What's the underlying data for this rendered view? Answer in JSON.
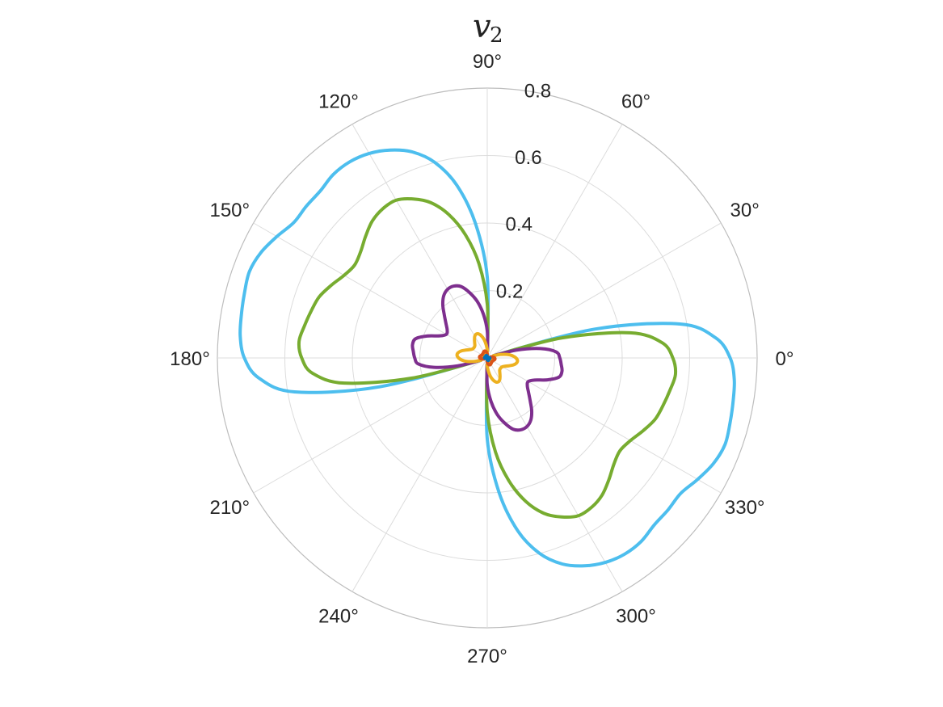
{
  "chart_data": {
    "type": "line",
    "projection": "polar",
    "title": "v",
    "title_subscript": "2",
    "rlim": [
      0,
      0.8
    ],
    "r_ticks": [
      0.2,
      0.4,
      0.6,
      0.8
    ],
    "r_tick_labels": [
      "0.2",
      "0.4",
      "0.6",
      "0.8"
    ],
    "theta_ticks": [
      0,
      30,
      60,
      90,
      120,
      150,
      180,
      210,
      240,
      270,
      300,
      330
    ],
    "theta_tick_labels": [
      "0°",
      "30°",
      "60°",
      "90°",
      "120°",
      "150°",
      "180°",
      "210°",
      "240°",
      "270°",
      "300°",
      "330°"
    ],
    "grid": true,
    "series": [
      {
        "color": "#4DBEEE",
        "theta_deg": [
          20,
          15,
          10,
          5,
          0,
          -5,
          -10,
          -15,
          -20,
          -25,
          -30,
          -35,
          -40,
          -45,
          -50,
          -55,
          -60,
          -65,
          -70,
          -75,
          -80,
          -85,
          -90,
          -92
        ],
        "r": [
          0.02,
          0.33,
          0.58,
          0.68,
          0.72,
          0.735,
          0.74,
          0.745,
          0.75,
          0.74,
          0.72,
          0.7,
          0.7,
          0.7,
          0.71,
          0.71,
          0.7,
          0.68,
          0.65,
          0.6,
          0.52,
          0.4,
          0.24,
          0.02
        ]
      },
      {
        "color": "#77AC30",
        "theta_deg": [
          20,
          15,
          10,
          5,
          0,
          -5,
          -10,
          -15,
          -20,
          -25,
          -30,
          -35,
          -40,
          -45,
          -50,
          -55,
          -60,
          -65,
          -70,
          -75,
          -80,
          -85,
          -90,
          -92
        ],
        "r": [
          0.02,
          0.23,
          0.43,
          0.52,
          0.55,
          0.56,
          0.55,
          0.54,
          0.53,
          0.51,
          0.49,
          0.48,
          0.49,
          0.51,
          0.53,
          0.54,
          0.54,
          0.52,
          0.49,
          0.44,
          0.37,
          0.28,
          0.16,
          0.02
        ]
      },
      {
        "color": "#7E2F8E",
        "theta_deg": [
          20,
          15,
          10,
          5,
          0,
          -5,
          -10,
          -15,
          -20,
          -25,
          -30,
          -35,
          -40,
          -45,
          -50,
          -55,
          -60,
          -65,
          -70,
          -75,
          -80,
          -85,
          -90,
          -92
        ],
        "r": [
          0.02,
          0.09,
          0.16,
          0.205,
          0.215,
          0.22,
          0.225,
          0.22,
          0.19,
          0.155,
          0.14,
          0.145,
          0.16,
          0.18,
          0.205,
          0.225,
          0.235,
          0.235,
          0.225,
          0.2,
          0.17,
          0.13,
          0.08,
          0.02
        ]
      },
      {
        "color": "#EDB120",
        "theta_deg": [
          20,
          15,
          10,
          5,
          0,
          -5,
          -10,
          -15,
          -20,
          -25,
          -30,
          -35,
          -40,
          -45,
          -50,
          -55,
          -60,
          -65,
          -70,
          -75,
          -80,
          -85,
          -90,
          -92
        ],
        "r": [
          0.02,
          0.04,
          0.06,
          0.075,
          0.085,
          0.09,
          0.088,
          0.08,
          0.068,
          0.058,
          0.052,
          0.05,
          0.05,
          0.052,
          0.058,
          0.066,
          0.074,
          0.078,
          0.076,
          0.068,
          0.056,
          0.04,
          0.025,
          0.02
        ]
      },
      {
        "color": "#D95319",
        "theta_deg": [
          20,
          15,
          10,
          5,
          0,
          -5,
          -10,
          -15,
          -20,
          -25,
          -30,
          -35,
          -40,
          -45,
          -50,
          -55,
          -60,
          -65,
          -70,
          -75,
          -80,
          -85,
          -90,
          -92
        ],
        "r": [
          0.01,
          0.012,
          0.016,
          0.02,
          0.022,
          0.023,
          0.023,
          0.022,
          0.02,
          0.019,
          0.018,
          0.018,
          0.018,
          0.018,
          0.019,
          0.02,
          0.021,
          0.022,
          0.022,
          0.021,
          0.019,
          0.016,
          0.012,
          0.01
        ]
      },
      {
        "color": "#0072BD",
        "theta_deg": [
          20,
          15,
          10,
          5,
          0,
          -5,
          -10,
          -15,
          -20,
          -25,
          -30,
          -35,
          -40,
          -45,
          -50,
          -55,
          -60,
          -65,
          -70,
          -75,
          -80,
          -85,
          -90,
          -92
        ],
        "r": [
          0.004,
          0.005,
          0.006,
          0.007,
          0.008,
          0.008,
          0.008,
          0.008,
          0.007,
          0.007,
          0.007,
          0.007,
          0.007,
          0.007,
          0.007,
          0.007,
          0.008,
          0.008,
          0.008,
          0.007,
          0.007,
          0.006,
          0.005,
          0.004
        ]
      }
    ],
    "symmetry": "point-symmetric (each curve repeats rotated by 180°)"
  }
}
